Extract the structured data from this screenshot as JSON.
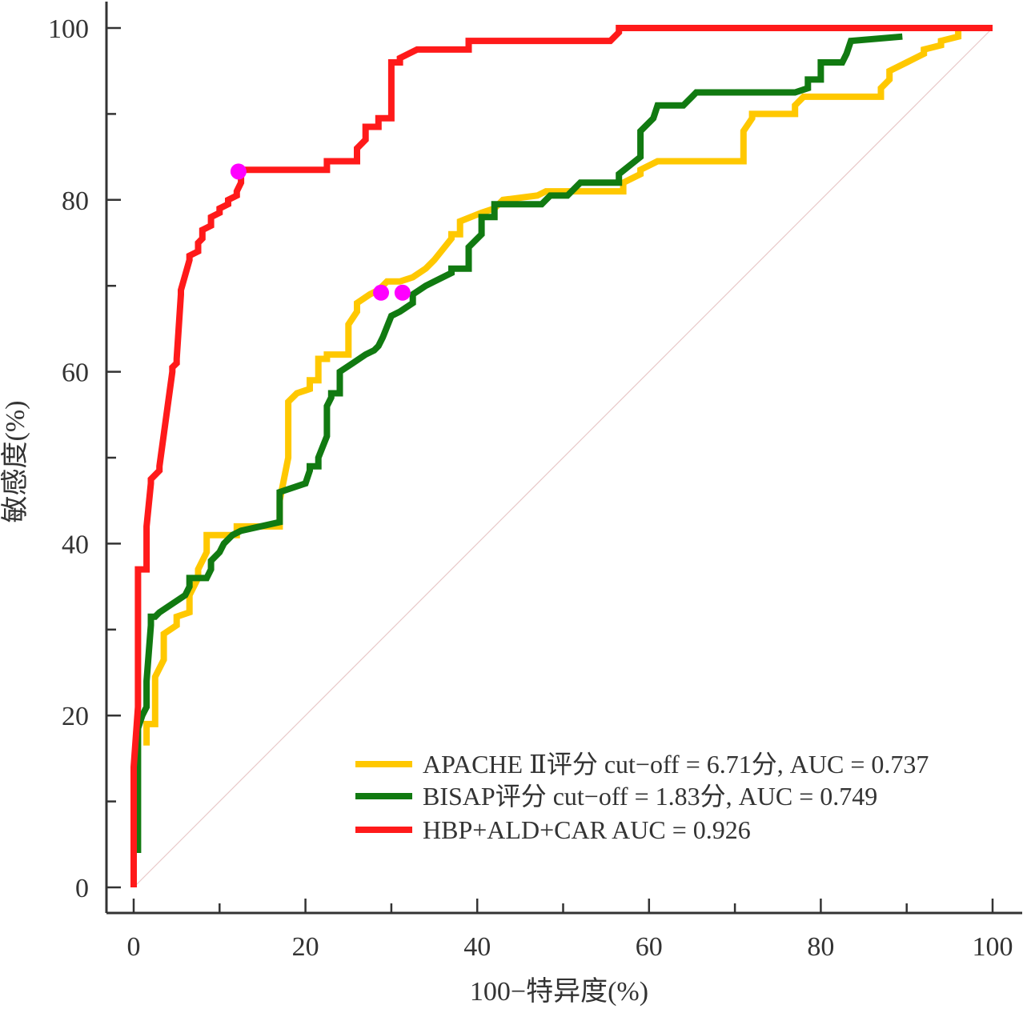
{
  "chart_data": {
    "type": "line",
    "subtype": "roc",
    "xlabel": "100−特异度(%)",
    "ylabel": "敏感度(%)",
    "xlim": [
      0,
      100
    ],
    "ylim": [
      0,
      100
    ],
    "xticks": [
      "0",
      "20",
      "40",
      "60",
      "80",
      "100"
    ],
    "yticks": [
      "0",
      "20",
      "40",
      "60",
      "80",
      "100"
    ],
    "grid": false,
    "legend_position": "bottom-right",
    "reference_line": {
      "from": [
        0,
        0
      ],
      "to": [
        100,
        100
      ],
      "color": "#e8c8c8"
    },
    "series": [
      {
        "name": "APACHE Ⅱ评分 cut−off = 6.71分, AUC = 0.737",
        "color": "#ffc800",
        "x": [
          1.5,
          1.5,
          2.5,
          2.5,
          3.5,
          3.5,
          5,
          5,
          6.5,
          6.5,
          7.5,
          7.5,
          8.5,
          8.5,
          12,
          12,
          17,
          17,
          18,
          18,
          19,
          19,
          20.5,
          20.5,
          21.5,
          21.5,
          22.5,
          22.5,
          25,
          25,
          26,
          26,
          27.5,
          28.5,
          29.5,
          29.5,
          31,
          31,
          32.5,
          34,
          35,
          35,
          37,
          37,
          38,
          38,
          40.5,
          42,
          43,
          43,
          47,
          47,
          48,
          48,
          57,
          57,
          59,
          59,
          61,
          61,
          71,
          71,
          72,
          72,
          77,
          77,
          78,
          80,
          80,
          87,
          87,
          88,
          88,
          90,
          90,
          92,
          92,
          94,
          94,
          96,
          96
        ],
        "y": [
          16.5,
          19,
          19,
          24.5,
          26.5,
          29.5,
          30.5,
          31.5,
          32,
          34,
          36,
          37,
          39,
          41,
          41,
          42,
          42,
          45,
          50,
          56.5,
          57.5,
          57.5,
          58,
          59,
          59,
          61.5,
          61.5,
          62,
          62,
          65.5,
          67,
          68,
          69,
          69.5,
          70.5,
          70.5,
          70.5,
          70.5,
          71,
          72,
          73,
          73,
          75.5,
          76,
          76,
          77.5,
          78.5,
          79,
          80,
          80,
          80.5,
          80.5,
          81,
          81,
          81,
          82,
          83,
          83.5,
          84.5,
          84.5,
          84.5,
          88,
          89.5,
          90,
          90,
          91,
          92,
          92,
          92,
          92,
          93,
          94,
          95,
          96,
          96,
          97,
          97.5,
          98,
          98.5,
          99,
          100
        ]
      },
      {
        "name": "BISAP评分 cut−off = 1.83分, AUC = 0.749",
        "color": "#117a11",
        "x": [
          0.5,
          0.5,
          1,
          1.5,
          1.5,
          2,
          2,
          2.5,
          3,
          6,
          6.5,
          6.5,
          8.5,
          9,
          9,
          10,
          10.5,
          11.5,
          12.5,
          17,
          17,
          20,
          20.5,
          20.5,
          21.5,
          21.5,
          22.5,
          22.5,
          23,
          23,
          24,
          24,
          25.5,
          27,
          28,
          28.5,
          29,
          30,
          31,
          32.5,
          32.5,
          34,
          35,
          37,
          37,
          39,
          39,
          40.5,
          40.5,
          42,
          42,
          47.5,
          48.5,
          50.5,
          51.5,
          52,
          52.5,
          53,
          53.5,
          54.5,
          55.5,
          56.5,
          56.5,
          59,
          59,
          60.5,
          61,
          61,
          64,
          65,
          65.5,
          76.5,
          77,
          78.5,
          78.5,
          80,
          80,
          82.5,
          83,
          83.5,
          89.5
        ],
        "y": [
          4,
          18.5,
          20,
          21,
          24,
          30.5,
          31.5,
          31.5,
          32,
          34,
          35,
          36,
          36,
          37,
          38,
          39,
          40,
          41,
          41.5,
          42.5,
          46,
          47,
          48.5,
          49,
          49,
          50,
          52.5,
          56,
          57,
          57.5,
          57.5,
          60,
          61,
          62,
          62.5,
          63,
          64,
          66.5,
          67,
          68,
          69,
          70,
          70.5,
          71.5,
          72,
          72,
          74.5,
          76,
          78,
          78,
          79.5,
          79.5,
          80.5,
          80.5,
          81.5,
          82,
          82,
          82,
          82,
          82,
          82,
          82,
          83,
          85,
          88,
          89.5,
          91,
          91,
          91,
          92,
          92.5,
          92.5,
          92.5,
          93,
          94,
          94,
          96,
          96,
          97,
          98.5,
          99
        ]
      },
      {
        "name": "HBP+ALD+CAR AUC = 0.926",
        "color": "#ff1a1a",
        "x": [
          0,
          0,
          0.5,
          0.5,
          1.5,
          1.5,
          2,
          2,
          3,
          3,
          4.5,
          4.5,
          5,
          5,
          5.5,
          5.5,
          6.5,
          6.5,
          7.5,
          7.5,
          8,
          8,
          9,
          9,
          10,
          10,
          11,
          11,
          12,
          12,
          12.5,
          12.5,
          22.5,
          22.5,
          26,
          26,
          27,
          27,
          28.5,
          28.5,
          30,
          30,
          31,
          31,
          32,
          32,
          33,
          39,
          39,
          40,
          55.5,
          56.5,
          56.5,
          100
        ],
        "y": [
          0,
          14,
          21,
          37,
          37,
          42,
          47,
          47.5,
          48.5,
          49,
          60,
          60.5,
          61,
          61.5,
          69,
          69.5,
          73,
          73.5,
          74,
          75,
          75.5,
          76.5,
          77,
          78,
          78.5,
          79,
          79.5,
          80,
          80.5,
          81,
          82,
          83.5,
          83.5,
          84.5,
          84.5,
          86,
          87,
          88.5,
          88.5,
          89.5,
          89.5,
          96,
          96,
          96.5,
          97,
          97,
          97.5,
          97.5,
          98.5,
          98.5,
          98.5,
          99.5,
          100,
          100
        ]
      }
    ],
    "cutoff_markers": [
      {
        "series": "HBP+ALD+CAR AUC = 0.926",
        "x": 12.2,
        "y": 83.3,
        "color": "#ff00ff"
      },
      {
        "series": "APACHE Ⅱ评分 cut−off = 6.71分, AUC = 0.737",
        "x": 28.8,
        "y": 69.2,
        "color": "#ff00ff"
      },
      {
        "series": "BISAP评分 cut−off = 1.83分, AUC = 0.749",
        "x": 31.3,
        "y": 69.2,
        "color": "#ff00ff"
      }
    ]
  }
}
